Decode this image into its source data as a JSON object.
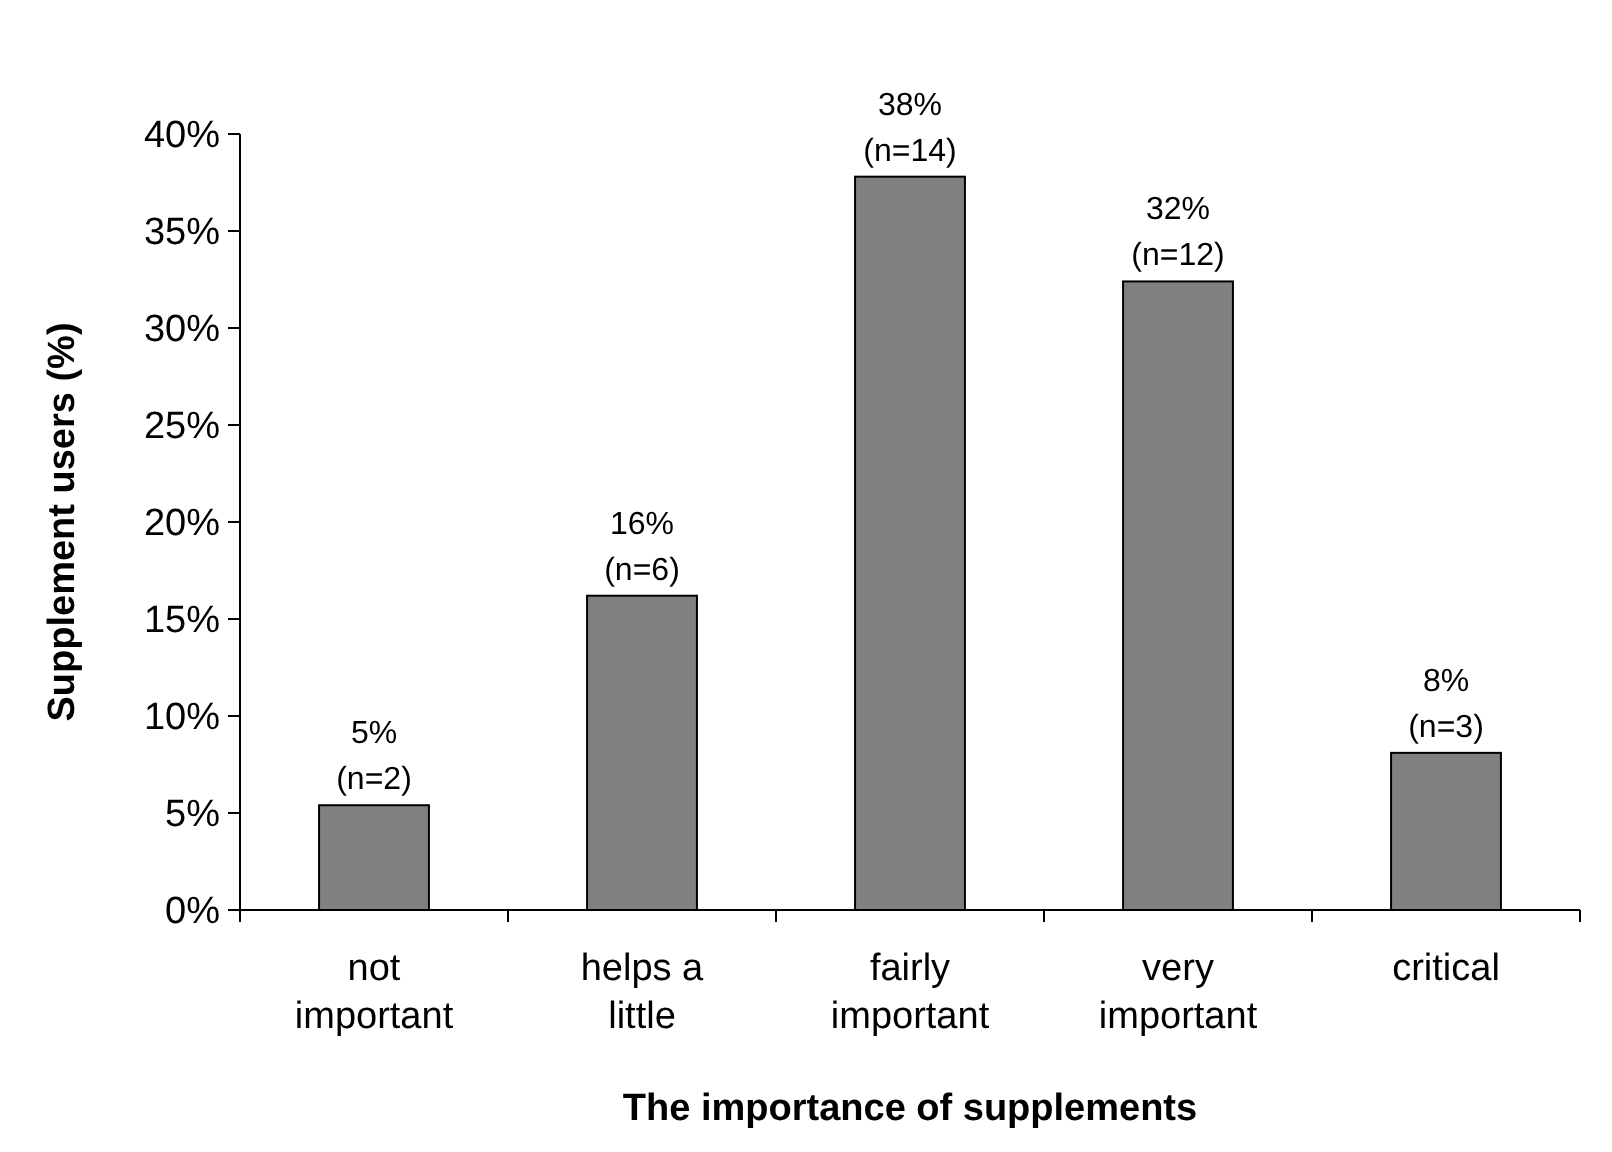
{
  "chart_data": {
    "type": "bar",
    "xlabel": "The importance of supplements",
    "ylabel": "Supplement users (%)",
    "categories": [
      "not\nimportant",
      "helps a\nlittle",
      "fairly\nimportant",
      "very\nimportant",
      "critical"
    ],
    "values": [
      5.4,
      16.2,
      37.8,
      32.4,
      8.1
    ],
    "value_labels": [
      "5%\n(n=2)",
      "16%\n(n=6)",
      "38%\n(n=14)",
      "32%\n(n=12)",
      "8%\n(n=3)"
    ],
    "color": "#808080",
    "ylim": [
      0,
      40
    ],
    "yticks": [
      {
        "value": 0,
        "label": "0%"
      },
      {
        "value": 5,
        "label": "5%"
      },
      {
        "value": 10,
        "label": "10%"
      },
      {
        "value": 15,
        "label": "15%"
      },
      {
        "value": 20,
        "label": "20%"
      },
      {
        "value": 25,
        "label": "25%"
      },
      {
        "value": 30,
        "label": "30%"
      },
      {
        "value": 35,
        "label": "35%"
      },
      {
        "value": 40,
        "label": "40%"
      }
    ],
    "grid": false
  }
}
